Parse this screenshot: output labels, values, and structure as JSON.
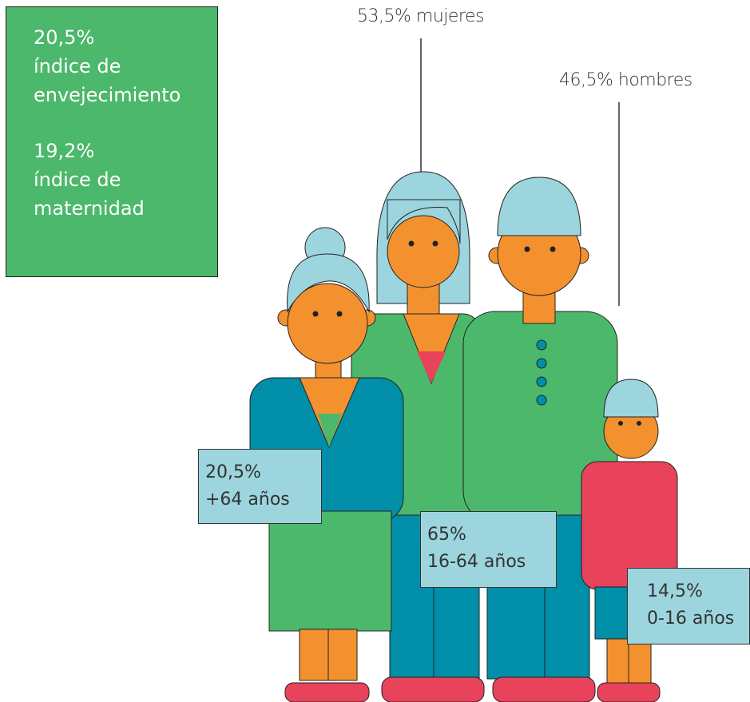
{
  "summary": {
    "aging_value": "20,5%",
    "aging_label": "índice de envejecimiento",
    "maternity_value": "19,2%",
    "maternity_label": "índice de maternidad"
  },
  "gender": {
    "women": "53,5% mujeres",
    "men": "46,5% hombres"
  },
  "age_groups": [
    {
      "value": "20,5%",
      "label": "+64 años"
    },
    {
      "value": "65%",
      "label": "16-64 años"
    },
    {
      "value": "14,5%",
      "label": "0-16 años"
    }
  ]
}
